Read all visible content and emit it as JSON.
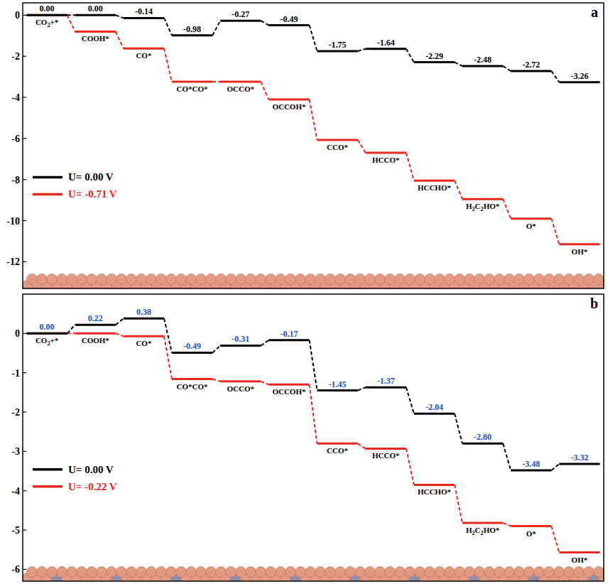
{
  "chart_data": [
    {
      "type": "line",
      "title": "a",
      "categories": [
        "CO2+*",
        "COOH*",
        "CO*",
        "CO*CO*",
        "OCCO*",
        "OCCOH*",
        "CCO*",
        "HCCO*",
        "HCCHO*",
        "H2C2HO*",
        "O*",
        "OH*"
      ],
      "ylim": [
        -13.3,
        0.6
      ],
      "yticks": [
        0,
        -2,
        -4,
        -6,
        -8,
        -10,
        -12
      ],
      "legend": "lower left",
      "series": [
        {
          "name": "U= 0.00 V",
          "color": "#000000",
          "line_style": "dashed",
          "data_labels": true,
          "values": [
            0.0,
            0.0,
            -0.14,
            -0.98,
            -0.27,
            -0.49,
            -1.75,
            -1.64,
            -2.29,
            -2.48,
            -2.72,
            -3.26
          ],
          "value_labels": [
            "0.00",
            "0.00",
            "-0.14",
            "-0.98",
            "-0.27",
            "-0.49",
            "-1.75",
            "-1.64",
            "-2.29",
            "-2.48",
            "-2.72",
            "-3.26"
          ]
        },
        {
          "name": "U= -0.71 V",
          "color": "#e8281e",
          "line_style": "dashed",
          "values": [
            0.0,
            -0.8,
            -1.62,
            -3.24,
            -3.24,
            -4.1,
            -6.07,
            -6.7,
            -8.05,
            -8.95,
            -9.9,
            -11.15
          ]
        }
      ]
    },
    {
      "type": "line",
      "title": "b",
      "categories": [
        "CO2+*",
        "COOH*",
        "CO*",
        "CO*CO*",
        "OCCO*",
        "OCCOH*",
        "CCO*",
        "HCCO*",
        "HCCHO*",
        "H2C2HO*",
        "O*",
        "OH*"
      ],
      "ylim": [
        -6.3,
        1.0
      ],
      "yticks": [
        0,
        -1,
        -2,
        -3,
        -4,
        -5,
        -6
      ],
      "legend": "lower left",
      "series": [
        {
          "name": "U= 0.00 V",
          "color": "#000000",
          "line_style": "dashed",
          "data_labels": true,
          "values": [
            0.0,
            0.22,
            0.38,
            -0.49,
            -0.31,
            -0.17,
            -1.45,
            -1.37,
            -2.04,
            -2.8,
            -3.48,
            -3.32
          ],
          "value_labels": [
            "0.00",
            "0.22",
            "0.38",
            "-0.49",
            "-0.31",
            "-0.17",
            "-1.45",
            "-1.37",
            "-2.04",
            "-2.80",
            "-3.48",
            "-3.32"
          ]
        },
        {
          "name": "U= -0.22 V",
          "color": "#e8281e",
          "line_style": "dashed",
          "values": [
            0.0,
            0.0,
            -0.07,
            -1.16,
            -1.22,
            -1.3,
            -2.8,
            -2.93,
            -3.85,
            -4.82,
            -4.9,
            -5.57
          ]
        }
      ]
    }
  ]
}
